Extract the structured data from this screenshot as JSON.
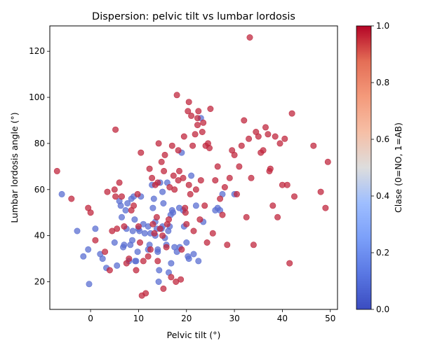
{
  "chart_data": {
    "type": "scatter",
    "title": "Dispersion: pelvic tilt vs lumbar lordosis",
    "xlabel": "Pelvic tilt (°)",
    "ylabel": "Lumbar lordosis angle (°)",
    "xlim": [
      -8.5,
      51.5
    ],
    "ylim": [
      8,
      131
    ],
    "xticks": [
      0,
      10,
      20,
      30,
      40,
      50
    ],
    "yticks": [
      20,
      40,
      60,
      80,
      100,
      120
    ],
    "grid": false,
    "colorbar": {
      "label": "Clase (0=NO, 1=AB)",
      "range": [
        0,
        1
      ],
      "ticks": [
        0.0,
        0.2,
        0.4,
        0.6,
        0.8,
        1.0
      ],
      "tick_labels": [
        "0.0",
        "0.2",
        "0.4",
        "0.6",
        "0.8",
        "1.0"
      ],
      "colormap": "coolwarm",
      "color_low": "#3b4cc0",
      "color_high": "#b40426"
    },
    "series": [
      {
        "class_value": 0,
        "color": "#5b6fd2",
        "x": [
          -6.0,
          -2.8,
          -1.5,
          -0.5,
          -0.3,
          1.0,
          2.0,
          2.5,
          3.3,
          5.0,
          5.5,
          6.0,
          6.3,
          6.5,
          6.8,
          7.0,
          7.3,
          7.5,
          7.7,
          8.0,
          8.3,
          8.5,
          8.8,
          9.0,
          9.2,
          9.5,
          9.8,
          10.0,
          10.2,
          10.5,
          11.0,
          12.0,
          12.3,
          12.5,
          12.8,
          13.0,
          13.2,
          13.5,
          13.8,
          14.0,
          14.2,
          14.3,
          14.5,
          14.8,
          15.0,
          15.2,
          15.5,
          15.8,
          16.0,
          16.2,
          16.5,
          16.8,
          17.0,
          17.2,
          17.5,
          18.0,
          18.5,
          19.0,
          19.3,
          19.5,
          20.0,
          20.5,
          21.0,
          21.5,
          22.0,
          22.5,
          23.0,
          23.5,
          26.0,
          26.5,
          27.0,
          27.5,
          30.0,
          13.5,
          14.0,
          15.0,
          16.3,
          12.0,
          11.3,
          9.3,
          8.7,
          18.6,
          20.3,
          16.7
        ],
        "y": [
          58,
          42,
          31,
          34,
          19,
          43,
          32,
          30,
          26,
          37,
          27,
          55,
          53,
          48,
          35,
          36,
          51,
          43,
          54,
          29,
          36,
          56,
          42,
          57,
          47,
          29,
          33,
          43,
          42,
          57,
          45,
          44,
          36,
          41,
          62,
          52,
          56,
          40,
          43,
          33,
          20,
          25,
          63,
          43,
          59,
          54,
          39,
          36,
          63,
          42,
          44,
          28,
          51,
          50,
          35,
          33,
          52,
          76,
          51,
          44,
          37,
          30,
          66,
          32,
          53,
          29,
          91,
          46,
          51,
          52,
          51,
          58,
          58,
          46,
          34,
          44,
          24,
          34,
          41,
          29,
          38,
          35,
          31,
          49
        ]
      },
      {
        "class_value": 1,
        "color": "#c0283f",
        "x": [
          -7.0,
          -4.0,
          -0.5,
          0.0,
          1.0,
          3.0,
          3.5,
          4.0,
          4.5,
          5.0,
          5.2,
          5.5,
          6.0,
          6.5,
          7.0,
          7.5,
          8.0,
          8.5,
          9.0,
          9.5,
          9.8,
          10.0,
          10.3,
          10.5,
          10.7,
          11.0,
          11.5,
          12.0,
          12.3,
          12.5,
          12.8,
          13.0,
          13.3,
          13.5,
          13.8,
          14.0,
          14.2,
          14.5,
          14.8,
          15.0,
          15.3,
          15.5,
          15.8,
          16.0,
          16.3,
          16.5,
          16.8,
          17.0,
          17.3,
          17.5,
          17.8,
          18.0,
          18.3,
          18.5,
          18.8,
          19.0,
          19.3,
          19.5,
          19.8,
          20.0,
          20.3,
          20.5,
          20.8,
          21.0,
          21.3,
          21.5,
          21.8,
          22.0,
          22.3,
          22.5,
          22.8,
          23.0,
          23.3,
          23.5,
          23.8,
          24.0,
          24.3,
          24.5,
          24.8,
          25.0,
          25.5,
          26.0,
          26.5,
          27.0,
          27.5,
          28.0,
          28.5,
          29.0,
          29.5,
          30.0,
          30.5,
          31.0,
          31.5,
          32.0,
          32.5,
          33.0,
          33.5,
          34.0,
          34.5,
          35.0,
          35.5,
          36.0,
          36.5,
          37.0,
          37.5,
          38.0,
          38.5,
          39.0,
          39.5,
          40.0,
          40.5,
          41.0,
          41.5,
          42.0,
          42.5,
          46.5,
          48.0,
          49.0,
          49.5,
          37.3,
          33.2,
          20.5,
          22.3,
          18.3,
          19.7,
          14.0,
          15.2,
          5.2
        ],
        "y": [
          68,
          56,
          52,
          50,
          38,
          33,
          59,
          25,
          42,
          60,
          57,
          43,
          63,
          57,
          44,
          28,
          30,
          51,
          53,
          25,
          58,
          44,
          37,
          76,
          14,
          29,
          15,
          31,
          69,
          34,
          65,
          45,
          41,
          62,
          48,
          63,
          80,
          43,
          72,
          40,
          68,
          75,
          35,
          45,
          47,
          61,
          22,
          79,
          66,
          60,
          20,
          101,
          64,
          68,
          21,
          34,
          65,
          83,
          50,
          45,
          94,
          62,
          58,
          92,
          79,
          42,
          84,
          60,
          88,
          94,
          47,
          64,
          85,
          89,
          53,
          79,
          37,
          80,
          78,
          95,
          41,
          64,
          70,
          56,
          49,
          61,
          36,
          65,
          77,
          75,
          58,
          70,
          79,
          90,
          48,
          82,
          65,
          36,
          85,
          83,
          76,
          77,
          87,
          84,
          69,
          53,
          83,
          48,
          80,
          62,
          82,
          62,
          28,
          93,
          57,
          79,
          59,
          52,
          72,
          68,
          126,
          98,
          91,
          77,
          52,
          29,
          17,
          86
        ]
      }
    ]
  }
}
